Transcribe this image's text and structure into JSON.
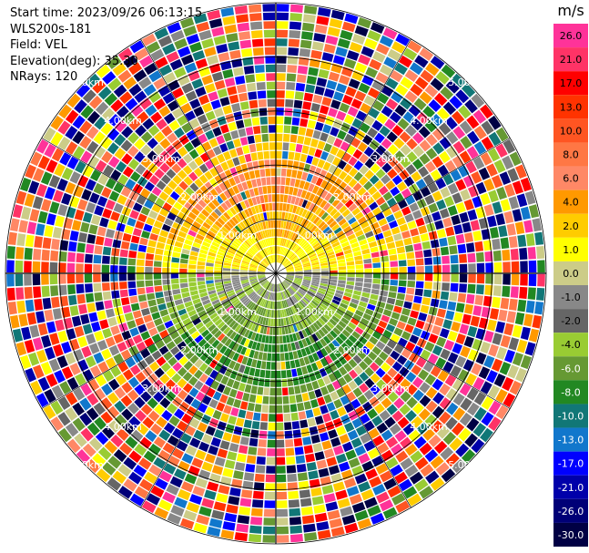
{
  "info": {
    "start_time": "Start time: 2023/09/26 06:13:15",
    "instrument": "WLS200s-181",
    "field": "Field: VEL",
    "elevation": "Elevation(deg): 35.30",
    "nrays": "NRays: 120"
  },
  "ppi": {
    "range_ring_labels": [
      "1.00km",
      "2.00km",
      "3.00km",
      "4.00km",
      "5.00km"
    ],
    "n_rays": 120,
    "n_gates": 30
  },
  "colorbar": {
    "unit": "m/s",
    "ticks": [
      "26.0",
      "21.0",
      "17.0",
      "13.0",
      "10.0",
      "8.0",
      "6.0",
      "4.0",
      "2.0",
      "1.0",
      "0.0",
      "-1.0",
      "-2.0",
      "-4.0",
      "-6.0",
      "-8.0",
      "-10.0",
      "-13.0",
      "-17.0",
      "-21.0",
      "-26.0",
      "-30.0"
    ],
    "colors": [
      "#ff3399",
      "#ff3366",
      "#ff0000",
      "#ff3300",
      "#ff5522",
      "#ff7744",
      "#ff8866",
      "#ff9900",
      "#ffcc00",
      "#ffff00",
      "#cccc88",
      "#888888",
      "#666666",
      "#99cc33",
      "#669933",
      "#228822",
      "#117777",
      "#1177cc",
      "#0000ff",
      "#0000aa",
      "#000077",
      "#000044"
    ]
  },
  "chart_data": {
    "type": "heatmap",
    "title": "",
    "field": "VEL",
    "unit": "m/s",
    "value_range": [
      -30.0,
      26.0
    ],
    "range_rings_km": [
      1,
      2,
      3,
      4,
      5
    ],
    "structure": {
      "inner_region": "smooth wind field: positive velocities (yellow/orange, ~2 to 8 m/s) north of center, negative velocities (green, ~-2 to -8 m/s) south of center",
      "outer_region": "noisy random colors beyond ~2.2 km"
    }
  }
}
